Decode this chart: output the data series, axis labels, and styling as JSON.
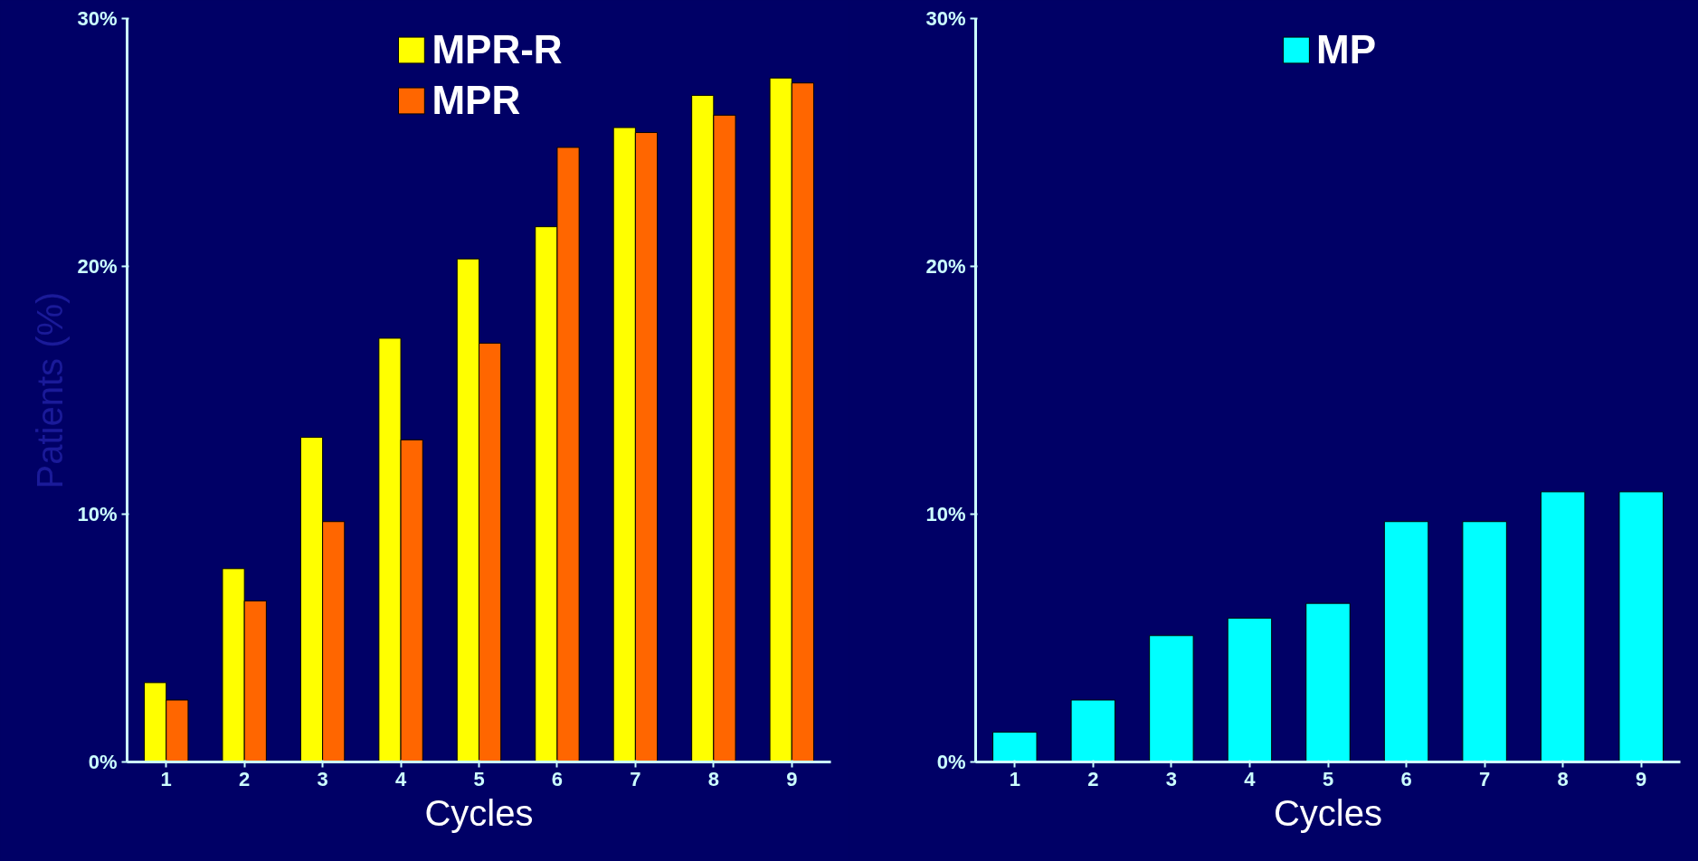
{
  "chart_data": [
    {
      "type": "bar",
      "ylabel": "Patients (%)",
      "xlabel": "Cycles",
      "categories": [
        "1",
        "2",
        "3",
        "4",
        "5",
        "6",
        "7",
        "8",
        "9"
      ],
      "series": [
        {
          "name": "MPR-R",
          "color": "#ffff00",
          "values": [
            3.2,
            7.8,
            13.1,
            17.1,
            20.3,
            21.6,
            25.6,
            26.9,
            27.6
          ]
        },
        {
          "name": "MPR",
          "color": "#ff6600",
          "values": [
            2.5,
            6.5,
            9.7,
            13.0,
            16.9,
            24.8,
            25.4,
            26.1,
            27.4
          ]
        }
      ],
      "ylim": [
        0,
        30
      ],
      "yticks": [
        {
          "value": 0,
          "label": "0%"
        },
        {
          "value": 10,
          "label": "10%"
        },
        {
          "value": 20,
          "label": "20%"
        },
        {
          "value": 30,
          "label": "30%"
        }
      ],
      "legend": "top",
      "grid": false
    },
    {
      "type": "bar",
      "xlabel": "Cycles",
      "categories": [
        "1",
        "2",
        "3",
        "4",
        "5",
        "6",
        "7",
        "8",
        "9"
      ],
      "series": [
        {
          "name": "MP",
          "color": "#00ffff",
          "values": [
            1.2,
            2.5,
            5.1,
            5.8,
            6.4,
            9.7,
            9.7,
            10.9,
            10.9
          ]
        }
      ],
      "ylim": [
        0,
        30
      ],
      "yticks": [
        {
          "value": 0,
          "label": "0%"
        },
        {
          "value": 10,
          "label": "10%"
        },
        {
          "value": 20,
          "label": "20%"
        },
        {
          "value": 30,
          "label": "30%"
        }
      ],
      "legend": "top",
      "grid": false
    }
  ]
}
